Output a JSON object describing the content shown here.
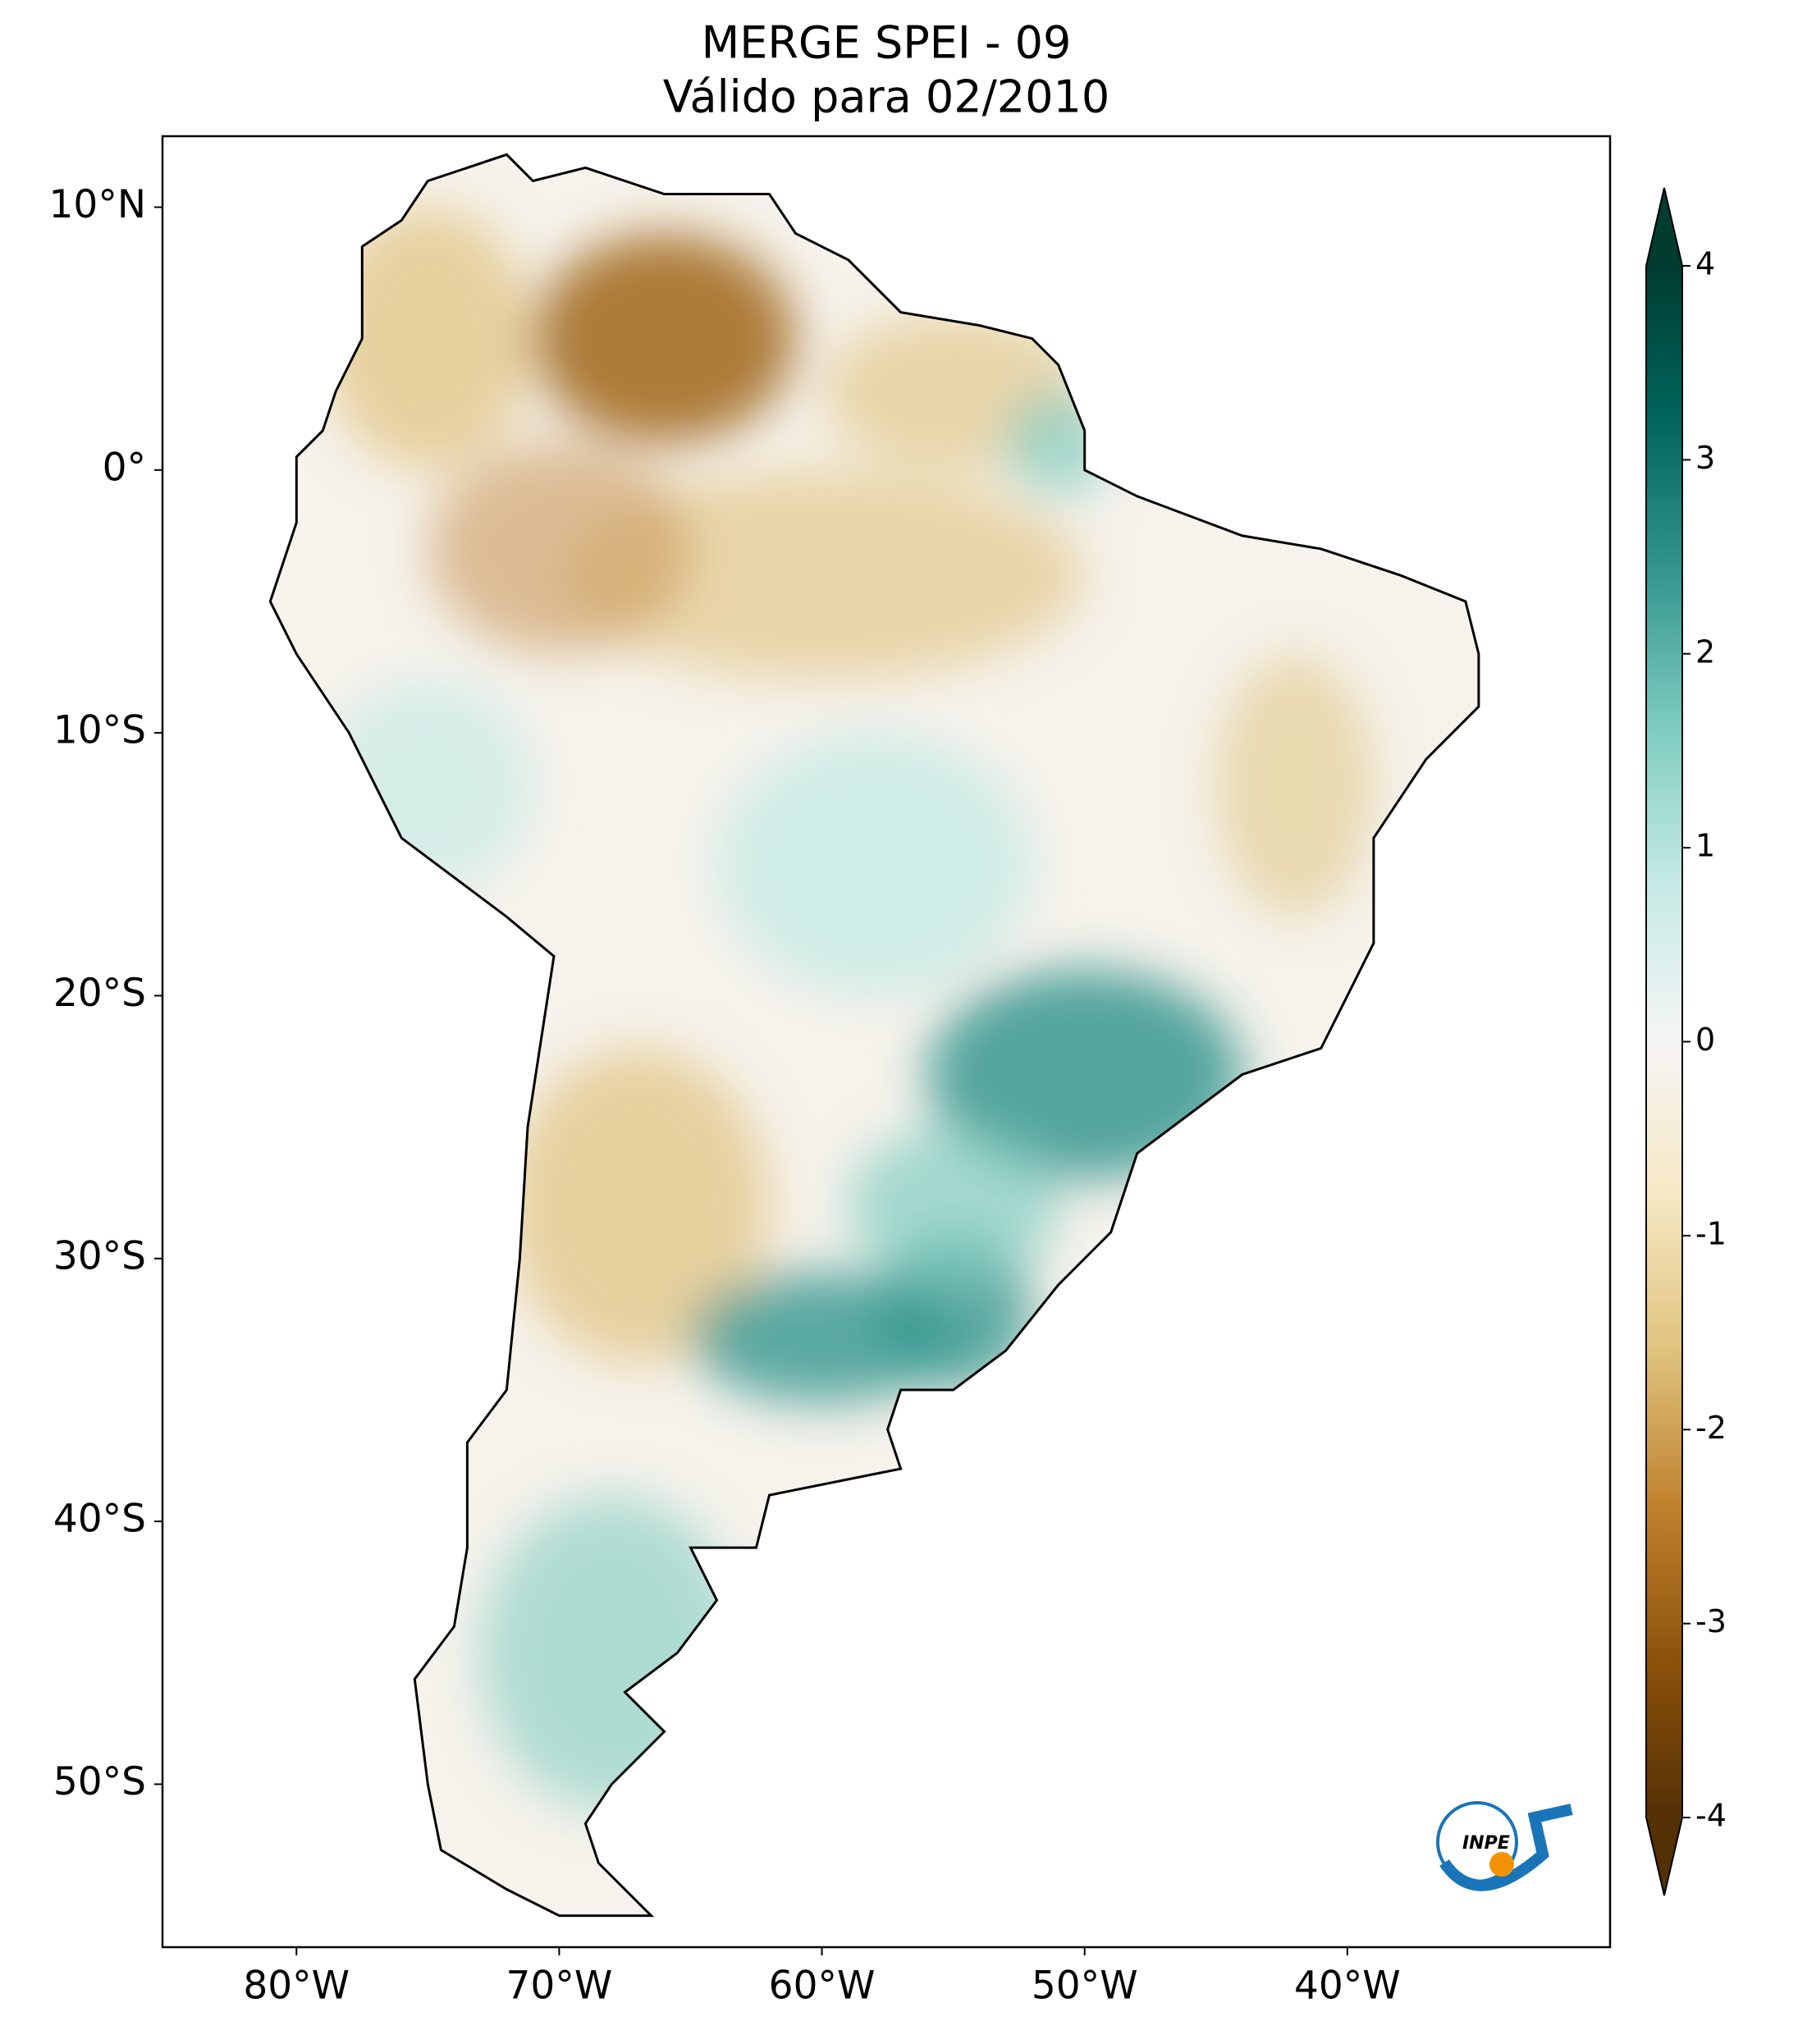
{
  "map": {
    "title": [
      "MERGE   SPEI - 09",
      "Válido para 02/2010"
    ],
    "lon_lim": [
      -85.1,
      -30
    ],
    "lat_lim": [
      -56.2,
      12.7
    ],
    "lon_ticks": [
      {
        "value": -80,
        "label": "80°W"
      },
      {
        "value": -70,
        "label": "70°W"
      },
      {
        "value": -60,
        "label": "60°W"
      },
      {
        "value": -50,
        "label": "50°W"
      },
      {
        "value": -40,
        "label": "40°W"
      }
    ],
    "lat_ticks": [
      {
        "value": 10,
        "label": "10°N"
      },
      {
        "value": 0,
        "label": "0°"
      },
      {
        "value": -10,
        "label": "10°S"
      },
      {
        "value": -20,
        "label": "20°S"
      },
      {
        "value": -30,
        "label": "30°S"
      },
      {
        "value": -40,
        "label": "40°S"
      },
      {
        "value": -50,
        "label": "50°S"
      }
    ],
    "colorbar": {
      "colormap": "BrBG",
      "lim": [
        -4,
        4
      ],
      "ticks": [
        4,
        3,
        2,
        1,
        0,
        -1,
        -2,
        -3,
        -4
      ]
    },
    "logo": "INPE"
  }
}
